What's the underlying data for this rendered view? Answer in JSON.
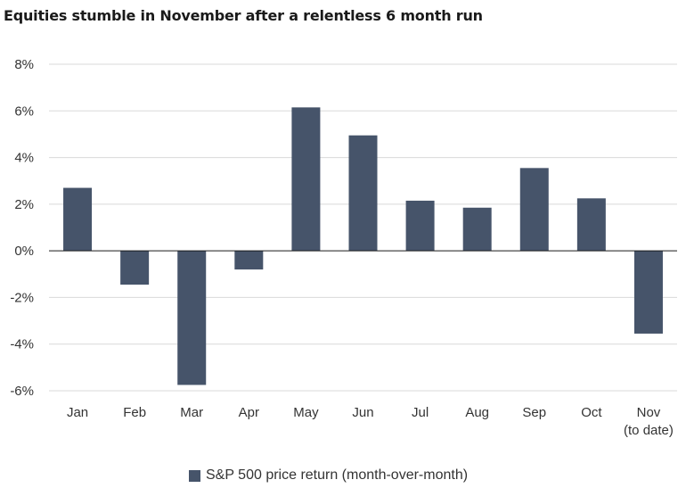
{
  "colors": {
    "bar": "#46546a",
    "grid": "#d9d9d9",
    "axis": "#1a1a1a",
    "text": "#333333"
  },
  "chart_data": {
    "type": "bar",
    "title": "Equities stumble in November after a relentless 6 month run",
    "xlabel": "",
    "ylabel": "",
    "ylim": [
      -6,
      8
    ],
    "yticks": [
      8,
      6,
      4,
      2,
      0,
      -2,
      -4,
      -6
    ],
    "ytick_labels": [
      "8%",
      "6%",
      "4%",
      "2%",
      "0%",
      "-2%",
      "-4%",
      "-6%"
    ],
    "categories": [
      "Jan",
      "Feb",
      "Mar",
      "Apr",
      "May",
      "Jun",
      "Jul",
      "Aug",
      "Sep",
      "Oct",
      "Nov\n(to date)"
    ],
    "series": [
      {
        "name": "S&P 500 price return (month-over-month)",
        "values": [
          2.7,
          -1.45,
          -5.75,
          -0.8,
          6.15,
          4.95,
          2.15,
          1.85,
          3.55,
          2.25,
          -3.55
        ]
      }
    ],
    "grid": true,
    "legend": "bottom"
  }
}
